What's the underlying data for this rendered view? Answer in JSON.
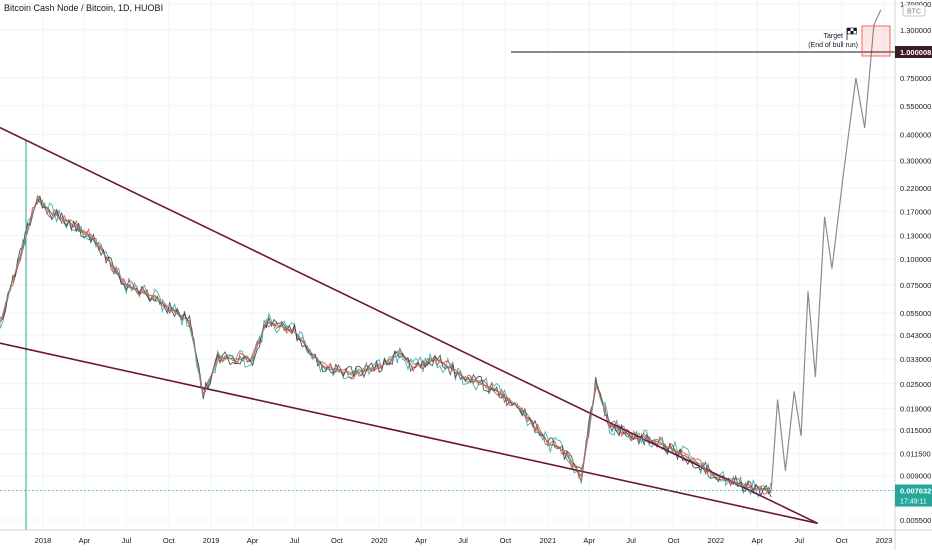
{
  "title": "Bitcoin Cash Node / Bitcoin, 1D, HUOBI",
  "annotation": {
    "line1": "Target",
    "line2": "(End of bull run)"
  },
  "colors": {
    "background": "#ffffff",
    "grid": "#f0f3fa",
    "price": "#8c8c8c",
    "trendline": "#6d1535",
    "target_box": "#f44336",
    "ma_red": "#e53935",
    "ma_green": "#43a047",
    "ma_teal": "#26a69a",
    "ma_dark": "#2b3a4a",
    "current_label": "#26a69a",
    "level_label": "#3b1c25"
  },
  "chart_data": {
    "type": "line",
    "title": "Bitcoin Cash Node / Bitcoin, 1D, HUOBI",
    "x_ticks": [
      "2018",
      "Apr",
      "Jul",
      "Oct",
      "2019",
      "Apr",
      "Jul",
      "Oct",
      "2020",
      "Apr",
      "Jul",
      "Oct",
      "2021",
      "Apr",
      "Jul",
      "Oct",
      "2022",
      "Apr",
      "Jul",
      "Oct",
      "2023"
    ],
    "y_ticks": [
      "1.700000",
      "1.300000",
      "1.000008",
      "0.750000",
      "0.550000",
      "0.400000",
      "0.300000",
      "0.220000",
      "0.170000",
      "0.130000",
      "0.100000",
      "0.075000",
      "0.055000",
      "0.043000",
      "0.033000",
      "0.025000",
      "0.019000",
      "0.015000",
      "0.011500",
      "0.009000",
      "0.007632",
      "0.005500"
    ],
    "scale": "log",
    "y_currency": "BTC",
    "current_price": "0.007632",
    "countdown": "17:49:11",
    "target_level": "1.000008",
    "series": [
      {
        "style": "historical",
        "x": [
          "2017-08-01",
          "2017-10-01",
          "2017-12-20",
          "2018-01-15",
          "2018-04-15",
          "2018-07-01",
          "2018-09-01",
          "2018-11-15",
          "2018-12-15",
          "2019-01-15",
          "2019-04-01",
          "2019-05-01",
          "2019-07-01",
          "2019-09-01",
          "2019-11-01",
          "2020-01-01",
          "2020-02-15",
          "2020-03-15",
          "2020-05-01",
          "2020-07-01",
          "2020-09-01",
          "2020-11-01",
          "2021-01-01",
          "2021-02-01",
          "2021-03-15",
          "2021-04-15",
          "2021-05-15",
          "2021-07-01",
          "2021-09-01",
          "2021-11-01",
          "2022-01-01",
          "2022-03-01",
          "2022-05-01"
        ],
        "y": [
          0.11,
          0.05,
          0.2,
          0.17,
          0.13,
          0.075,
          0.065,
          0.05,
          0.022,
          0.033,
          0.033,
          0.05,
          0.045,
          0.03,
          0.028,
          0.03,
          0.035,
          0.03,
          0.033,
          0.027,
          0.024,
          0.019,
          0.013,
          0.012,
          0.009,
          0.025,
          0.016,
          0.014,
          0.013,
          0.011,
          0.009,
          0.008,
          0.0076
        ]
      },
      {
        "style": "projection",
        "x": [
          "2022-05-01",
          "2022-05-15",
          "2022-06-01",
          "2022-06-20",
          "2022-07-05",
          "2022-07-20",
          "2022-08-05",
          "2022-08-25",
          "2022-09-10",
          "2022-10-05",
          "2022-11-01",
          "2022-11-20",
          "2022-12-10",
          "2022-12-25"
        ],
        "y": [
          0.0076,
          0.021,
          0.0095,
          0.023,
          0.014,
          0.07,
          0.027,
          0.16,
          0.09,
          0.26,
          0.75,
          0.43,
          1.35,
          1.6
        ]
      }
    ],
    "trendlines": [
      {
        "x": [
          "2017-08-01",
          "2022-08-10"
        ],
        "y": [
          0.5,
          0.0053
        ]
      },
      {
        "x": [
          "2017-08-01",
          "2022-08-10"
        ],
        "y": [
          0.042,
          0.0053
        ]
      }
    ]
  }
}
